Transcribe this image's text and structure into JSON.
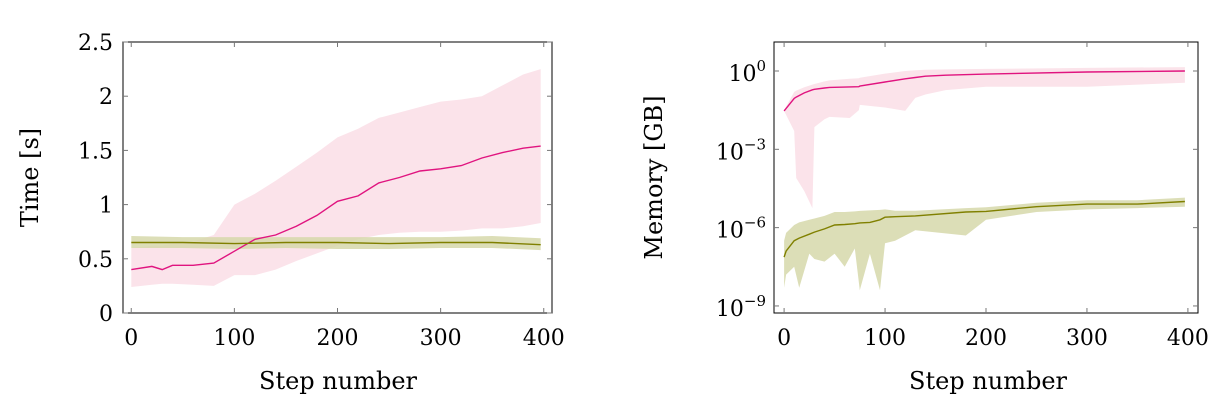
{
  "chart_data": [
    {
      "type": "line",
      "xlabel": "Step number",
      "ylabel": "Time [s]",
      "xlim": [
        -8,
        408
      ],
      "ylim": [
        0,
        2.5
      ],
      "xticks": [
        0,
        100,
        200,
        300,
        400
      ],
      "yticks": [
        0,
        0.5,
        1,
        1.5,
        2,
        2.5
      ],
      "ytick_labels": [
        "0",
        "0.5",
        "1",
        "1.5",
        "2",
        "2.5"
      ],
      "grid": false,
      "series": [
        {
          "color": "#e0147f",
          "band_color": "#fbe3ea",
          "x": [
            0,
            20,
            30,
            40,
            60,
            80,
            100,
            120,
            140,
            160,
            180,
            200,
            220,
            240,
            260,
            280,
            300,
            320,
            340,
            360,
            380,
            397
          ],
          "mean": [
            0.4,
            0.43,
            0.4,
            0.44,
            0.44,
            0.46,
            0.57,
            0.68,
            0.72,
            0.8,
            0.9,
            1.03,
            1.08,
            1.2,
            1.25,
            1.31,
            1.33,
            1.36,
            1.43,
            1.48,
            1.52,
            1.54
          ],
          "upper": [
            0.6,
            0.62,
            0.62,
            0.64,
            0.66,
            0.72,
            1.0,
            1.1,
            1.22,
            1.35,
            1.48,
            1.62,
            1.7,
            1.8,
            1.85,
            1.9,
            1.95,
            1.97,
            2.0,
            2.1,
            2.2,
            2.25
          ],
          "lower": [
            0.24,
            0.26,
            0.27,
            0.27,
            0.26,
            0.25,
            0.35,
            0.35,
            0.4,
            0.48,
            0.55,
            0.62,
            0.68,
            0.72,
            0.74,
            0.75,
            0.75,
            0.76,
            0.78,
            0.78,
            0.8,
            0.83
          ]
        },
        {
          "color": "#808000",
          "band_color": "#d6d8aa",
          "x": [
            0,
            50,
            100,
            150,
            200,
            250,
            300,
            350,
            397
          ],
          "mean": [
            0.65,
            0.65,
            0.64,
            0.65,
            0.65,
            0.64,
            0.65,
            0.65,
            0.63
          ],
          "upper": [
            0.71,
            0.7,
            0.7,
            0.7,
            0.7,
            0.7,
            0.7,
            0.71,
            0.69
          ],
          "lower": [
            0.6,
            0.6,
            0.59,
            0.6,
            0.59,
            0.59,
            0.6,
            0.6,
            0.58
          ]
        }
      ]
    },
    {
      "type": "line",
      "xlabel": "Step number",
      "ylabel": "Memory [GB]",
      "yscale": "log",
      "xlim": [
        -10,
        410
      ],
      "ylim": [
        5.37e-10,
        12.9
      ],
      "xticks": [
        0,
        100,
        200,
        300,
        400
      ],
      "yticks_exponents": [
        0,
        -3,
        -6,
        -9
      ],
      "grid": false,
      "series": [
        {
          "color": "#e0147f",
          "band_color": "#fbe3ea",
          "x": [
            0,
            10,
            12,
            20,
            28,
            30,
            40,
            45,
            65,
            74,
            75,
            100,
            120,
            130,
            140,
            160,
            200,
            300,
            397
          ],
          "log10_mean": [
            -1.53,
            -1.05,
            -1.0,
            -0.84,
            -0.72,
            -0.7,
            -0.65,
            -0.63,
            -0.61,
            -0.6,
            -0.58,
            -0.42,
            -0.3,
            -0.25,
            -0.2,
            -0.16,
            -0.12,
            -0.04,
            0.0
          ],
          "log10_upper": [
            -1.5,
            -0.8,
            -0.75,
            -0.62,
            -0.52,
            -0.5,
            -0.4,
            -0.36,
            -0.3,
            -0.28,
            -0.26,
            -0.1,
            0.0,
            0.03,
            0.05,
            0.06,
            0.08,
            0.12,
            0.15
          ],
          "log10_lower": [
            -1.53,
            -2.3,
            -4.1,
            -4.6,
            -5.25,
            -2.15,
            -1.85,
            -1.76,
            -1.8,
            -1.5,
            -1.3,
            -1.4,
            -1.53,
            -1.03,
            -0.9,
            -0.73,
            -0.6,
            -0.6,
            -0.45
          ]
        },
        {
          "color": "#808000",
          "band_color": "#d6d8aa",
          "x": [
            0,
            2,
            10,
            15,
            25,
            30,
            40,
            50,
            60,
            70,
            75,
            85,
            95,
            100,
            110,
            130,
            180,
            200,
            250,
            300,
            350,
            397
          ],
          "log10_mean": [
            -7.13,
            -6.9,
            -6.5,
            -6.4,
            -6.25,
            -6.17,
            -6.05,
            -5.9,
            -5.88,
            -5.85,
            -5.82,
            -5.8,
            -5.7,
            -5.6,
            -5.58,
            -5.55,
            -5.4,
            -5.38,
            -5.2,
            -5.1,
            -5.1,
            -5.0
          ],
          "log10_upper": [
            -6.5,
            -6.2,
            -5.9,
            -5.8,
            -5.7,
            -5.65,
            -5.55,
            -5.4,
            -5.4,
            -5.38,
            -5.36,
            -5.34,
            -5.32,
            -5.3,
            -5.35,
            -5.35,
            -5.25,
            -5.22,
            -5.05,
            -4.95,
            -4.95,
            -4.85
          ],
          "log10_lower": [
            -8.3,
            -7.8,
            -7.5,
            -8.3,
            -7.0,
            -7.2,
            -7.3,
            -7.0,
            -7.5,
            -6.8,
            -8.4,
            -7.0,
            -8.4,
            -6.6,
            -6.5,
            -6.1,
            -6.3,
            -5.7,
            -5.4,
            -5.3,
            -5.25,
            -5.2
          ]
        }
      ]
    }
  ]
}
